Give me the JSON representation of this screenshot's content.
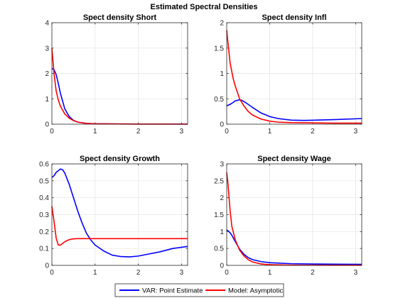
{
  "figure_title": "Estimated Spectral Densities",
  "colors": {
    "var": "#0000FF",
    "model": "#FF0000",
    "grid": "#e3e3e3",
    "axis": "#262626"
  },
  "legend": {
    "placement": "bottom-center",
    "entries": [
      {
        "label": "VAR: Point Estimate",
        "color": "#0000FF"
      },
      {
        "label": "Model: Asymptotic",
        "color": "#FF0000"
      }
    ]
  },
  "chart_data": [
    {
      "type": "line",
      "title": "Spect density Short",
      "xlim": [
        0,
        3.1416
      ],
      "ylim": [
        0,
        4
      ],
      "xticks": [
        0,
        1,
        2,
        3
      ],
      "yticks": [
        0,
        1,
        2,
        3,
        4
      ],
      "grid": true,
      "series": [
        {
          "name": "VAR: Point Estimate",
          "color": "#0000FF",
          "x": [
            0,
            0.05,
            0.1,
            0.15,
            0.2,
            0.3,
            0.4,
            0.5,
            0.6,
            0.8,
            1.0,
            1.5,
            2.0,
            2.5,
            3.1416
          ],
          "y": [
            2.2,
            2.15,
            1.95,
            1.6,
            1.2,
            0.6,
            0.3,
            0.15,
            0.08,
            0.03,
            0.015,
            0.01,
            0.005,
            0.005,
            0.005
          ]
        },
        {
          "name": "Model: Asymptotic",
          "color": "#FF0000",
          "x": [
            0,
            0.05,
            0.1,
            0.15,
            0.2,
            0.3,
            0.4,
            0.5,
            0.6,
            0.8,
            1.0,
            1.5,
            2.0,
            2.5,
            3.1416
          ],
          "y": [
            3.0,
            2.0,
            1.3,
            0.95,
            0.7,
            0.4,
            0.24,
            0.14,
            0.08,
            0.03,
            0.015,
            0.008,
            0.005,
            0.004,
            0.003
          ]
        }
      ]
    },
    {
      "type": "line",
      "title": "Spect density Infl",
      "xlim": [
        0,
        3.1416
      ],
      "ylim": [
        0,
        2
      ],
      "xticks": [
        0,
        1,
        2,
        3
      ],
      "yticks": [
        0,
        0.5,
        1,
        1.5,
        2
      ],
      "grid": true,
      "series": [
        {
          "name": "VAR: Point Estimate",
          "color": "#0000FF",
          "x": [
            0,
            0.1,
            0.2,
            0.3,
            0.35,
            0.45,
            0.6,
            0.8,
            1.0,
            1.2,
            1.5,
            1.8,
            2.0,
            2.5,
            3.1416
          ],
          "y": [
            0.36,
            0.4,
            0.46,
            0.48,
            0.47,
            0.42,
            0.33,
            0.22,
            0.15,
            0.11,
            0.08,
            0.075,
            0.078,
            0.09,
            0.11
          ]
        },
        {
          "name": "Model: Asymptotic",
          "color": "#FF0000",
          "x": [
            0,
            0.03,
            0.08,
            0.15,
            0.2,
            0.3,
            0.4,
            0.5,
            0.6,
            0.8,
            1.0,
            1.2,
            1.5,
            2.0,
            2.5,
            3.1416
          ],
          "y": [
            1.85,
            1.6,
            1.2,
            0.9,
            0.75,
            0.5,
            0.36,
            0.25,
            0.18,
            0.1,
            0.06,
            0.04,
            0.03,
            0.025,
            0.02,
            0.02
          ]
        }
      ]
    },
    {
      "type": "line",
      "title": "Spect density Growth",
      "xlim": [
        0,
        3.1416
      ],
      "ylim": [
        0,
        0.6
      ],
      "xticks": [
        0,
        1,
        2,
        3
      ],
      "yticks": [
        0,
        0.1,
        0.2,
        0.3,
        0.4,
        0.5,
        0.6
      ],
      "grid": true,
      "series": [
        {
          "name": "VAR: Point Estimate",
          "color": "#0000FF",
          "x": [
            0,
            0.05,
            0.1,
            0.2,
            0.25,
            0.3,
            0.4,
            0.5,
            0.6,
            0.7,
            0.8,
            0.9,
            1.0,
            1.2,
            1.4,
            1.6,
            1.8,
            2.0,
            2.2,
            2.5,
            2.8,
            3.1416
          ],
          "y": [
            0.52,
            0.53,
            0.55,
            0.57,
            0.565,
            0.545,
            0.48,
            0.4,
            0.32,
            0.25,
            0.19,
            0.15,
            0.12,
            0.085,
            0.06,
            0.052,
            0.05,
            0.055,
            0.065,
            0.08,
            0.1,
            0.112
          ]
        },
        {
          "name": "Model: Asymptotic",
          "color": "#FF0000",
          "x": [
            0,
            0.05,
            0.1,
            0.15,
            0.2,
            0.25,
            0.3,
            0.4,
            0.5,
            0.6,
            0.8,
            1.0,
            1.5,
            2.0,
            2.5,
            3.1416
          ],
          "y": [
            0.35,
            0.26,
            0.16,
            0.12,
            0.12,
            0.13,
            0.14,
            0.152,
            0.157,
            0.158,
            0.158,
            0.158,
            0.158,
            0.158,
            0.158,
            0.158
          ]
        }
      ]
    },
    {
      "type": "line",
      "title": "Spect density Wage",
      "xlim": [
        0,
        3.1416
      ],
      "ylim": [
        0,
        3
      ],
      "xticks": [
        0,
        1,
        2,
        3
      ],
      "yticks": [
        0,
        0.5,
        1,
        1.5,
        2,
        2.5,
        3
      ],
      "grid": true,
      "series": [
        {
          "name": "VAR: Point Estimate",
          "color": "#0000FF",
          "x": [
            0,
            0.05,
            0.1,
            0.15,
            0.2,
            0.3,
            0.4,
            0.5,
            0.6,
            0.8,
            1.0,
            1.5,
            2.0,
            2.5,
            3.1416
          ],
          "y": [
            1.05,
            1.0,
            0.93,
            0.82,
            0.7,
            0.48,
            0.33,
            0.23,
            0.17,
            0.11,
            0.08,
            0.05,
            0.04,
            0.035,
            0.03
          ]
        },
        {
          "name": "Model: Asymptotic",
          "color": "#FF0000",
          "x": [
            0,
            0.03,
            0.08,
            0.12,
            0.2,
            0.3,
            0.4,
            0.5,
            0.6,
            0.8,
            1.0,
            1.5,
            2.0,
            2.5,
            3.1416
          ],
          "y": [
            2.75,
            2.4,
            1.6,
            1.15,
            0.75,
            0.45,
            0.28,
            0.17,
            0.1,
            0.04,
            0.02,
            0.008,
            0.005,
            0.004,
            0.003
          ]
        }
      ]
    }
  ]
}
